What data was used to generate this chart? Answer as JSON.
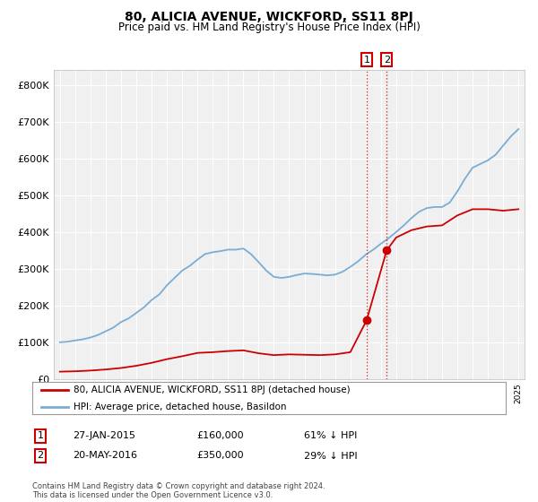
{
  "title": "80, ALICIA AVENUE, WICKFORD, SS11 8PJ",
  "subtitle": "Price paid vs. HM Land Registry's House Price Index (HPI)",
  "legend_line1": "80, ALICIA AVENUE, WICKFORD, SS11 8PJ (detached house)",
  "legend_line2": "HPI: Average price, detached house, Basildon",
  "footer": "Contains HM Land Registry data © Crown copyright and database right 2024.\nThis data is licensed under the Open Government Licence v3.0.",
  "sales": [
    {
      "num": 1,
      "date": "27-JAN-2015",
      "price": 160000,
      "pct": "61% ↓ HPI",
      "year": 2015.07
    },
    {
      "num": 2,
      "date": "20-MAY-2016",
      "price": 350000,
      "pct": "29% ↓ HPI",
      "year": 2016.38
    }
  ],
  "property_color": "#cc0000",
  "hpi_color": "#7aadd4",
  "vline_color": "#cc0000",
  "marker_box_color": "#cc0000",
  "ylim": [
    0,
    840000
  ],
  "xlim_start": 1994.6,
  "xlim_end": 2025.4,
  "background_color": "#ffffff",
  "plot_bg_color": "#f0f0f0",
  "grid_color": "#ffffff",
  "hpi_years": [
    1995,
    1995.5,
    1996,
    1996.5,
    1997,
    1997.5,
    1998,
    1998.5,
    1999,
    1999.5,
    2000,
    2000.5,
    2001,
    2001.5,
    2002,
    2002.5,
    2003,
    2003.5,
    2004,
    2004.5,
    2005,
    2005.5,
    2006,
    2006.5,
    2007,
    2007.5,
    2008,
    2008.5,
    2009,
    2009.5,
    2010,
    2010.5,
    2011,
    2011.5,
    2012,
    2012.5,
    2013,
    2013.5,
    2014,
    2014.5,
    2015,
    2015.5,
    2016,
    2016.5,
    2017,
    2017.5,
    2018,
    2018.5,
    2019,
    2019.5,
    2020,
    2020.5,
    2021,
    2021.5,
    2022,
    2022.5,
    2023,
    2023.5,
    2024,
    2024.5,
    2025
  ],
  "hpi_values": [
    100000,
    101500,
    105000,
    108000,
    113000,
    120000,
    130000,
    140000,
    155000,
    165000,
    180000,
    195000,
    215000,
    230000,
    255000,
    275000,
    295000,
    308000,
    325000,
    340000,
    345000,
    348000,
    352000,
    352000,
    355000,
    340000,
    318000,
    295000,
    278000,
    275000,
    278000,
    283000,
    287000,
    286000,
    284000,
    282000,
    284000,
    292000,
    305000,
    320000,
    338000,
    352000,
    368000,
    383000,
    400000,
    418000,
    438000,
    455000,
    465000,
    468000,
    468000,
    480000,
    510000,
    545000,
    575000,
    585000,
    595000,
    610000,
    635000,
    660000,
    680000
  ],
  "prop_years": [
    1995,
    1996,
    1997,
    1998,
    1999,
    2000,
    2001,
    2002,
    2003,
    2004,
    2005,
    2006,
    2007,
    2008,
    2009,
    2010,
    2011,
    2012,
    2013,
    2014,
    2015.07,
    2016.38,
    2017,
    2018,
    2019,
    2020,
    2021,
    2022,
    2023,
    2024,
    2025
  ],
  "prop_values": [
    20000,
    21000,
    23000,
    26000,
    30000,
    36000,
    44000,
    54000,
    62000,
    71000,
    73000,
    76000,
    78000,
    70000,
    65000,
    67000,
    66000,
    65000,
    67000,
    73000,
    160000,
    350000,
    385000,
    405000,
    415000,
    418000,
    445000,
    462000,
    462000,
    458000,
    462000
  ],
  "yticks": [
    0,
    100000,
    200000,
    300000,
    400000,
    500000,
    600000,
    700000,
    800000
  ],
  "ylabels": [
    "£0",
    "£100K",
    "£200K",
    "£300K",
    "£400K",
    "£500K",
    "£600K",
    "£700K",
    "£800K"
  ]
}
